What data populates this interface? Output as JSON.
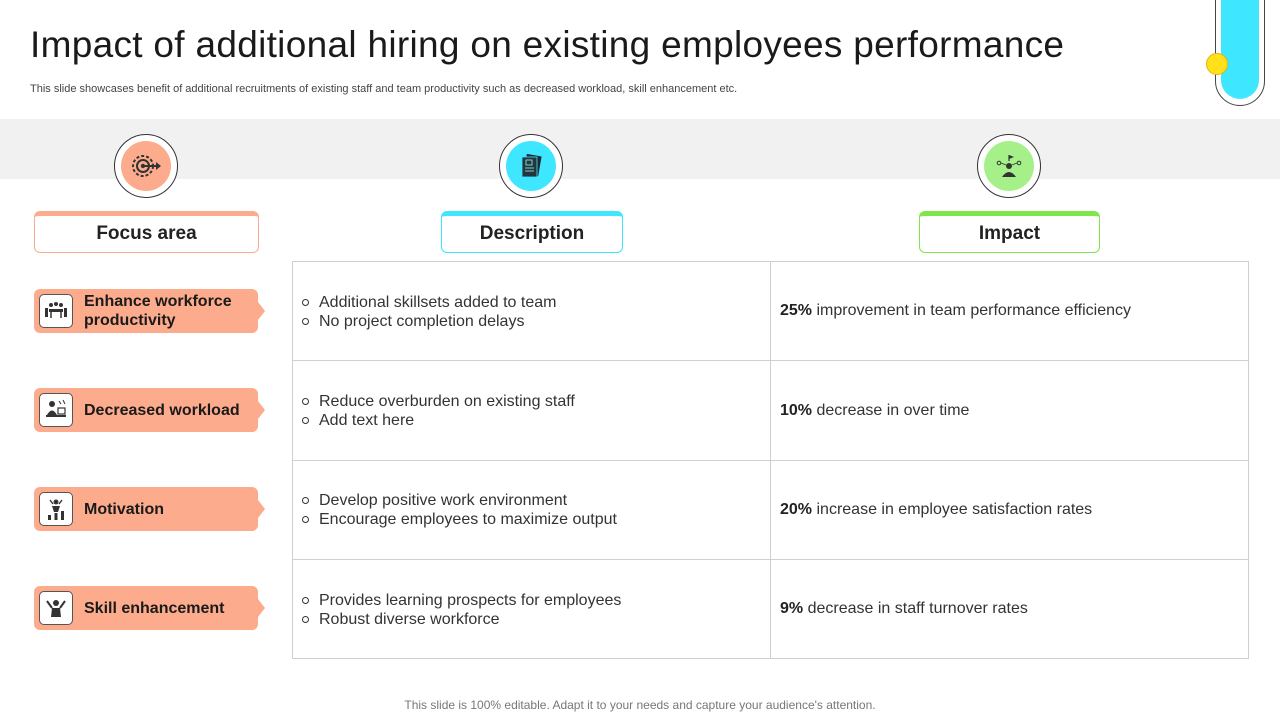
{
  "title": "Impact of additional hiring on existing employees performance",
  "subtitle": "This slide showcases benefit of additional recruitments of existing staff and team productivity such as decreased workload, skill enhancement etc.",
  "colors": {
    "focus_accent": "#fcac8c",
    "description_accent": "#3ee6ff",
    "impact_accent": "#7ee64a",
    "decor_dot": "#ffe01a"
  },
  "headers": {
    "focus": "Focus area",
    "description": "Description",
    "impact": "Impact"
  },
  "header_icons": [
    "target-arrow-icon",
    "documents-icon",
    "leader-icon"
  ],
  "rows": [
    {
      "focus": "Enhance workforce productivity",
      "icon": "team-meeting-icon",
      "description": [
        "Additional skillsets added to team",
        "No project completion delays"
      ],
      "impact_value": "25%",
      "impact_text": " improvement in team performance efficiency"
    },
    {
      "focus": "Decreased workload",
      "icon": "desk-worker-icon",
      "description": [
        "Reduce overburden on existing staff",
        "Add text here"
      ],
      "impact_value": "10%",
      "impact_text": "decrease in over time"
    },
    {
      "focus": "Motivation",
      "icon": "growth-person-icon",
      "description": [
        "Develop positive work environment",
        "Encourage employees to maximize output"
      ],
      "impact_value": "20%",
      "impact_text": "increase in employee satisfaction rates"
    },
    {
      "focus": "Skill enhancement",
      "icon": "celebrating-person-icon",
      "description": [
        "Provides learning prospects for employees",
        "Robust diverse workforce"
      ],
      "impact_value": "9%",
      "impact_text": "decrease in staff turnover  rates"
    }
  ],
  "footer": "This slide is 100% editable. Adapt it to your needs and capture your audience's attention."
}
